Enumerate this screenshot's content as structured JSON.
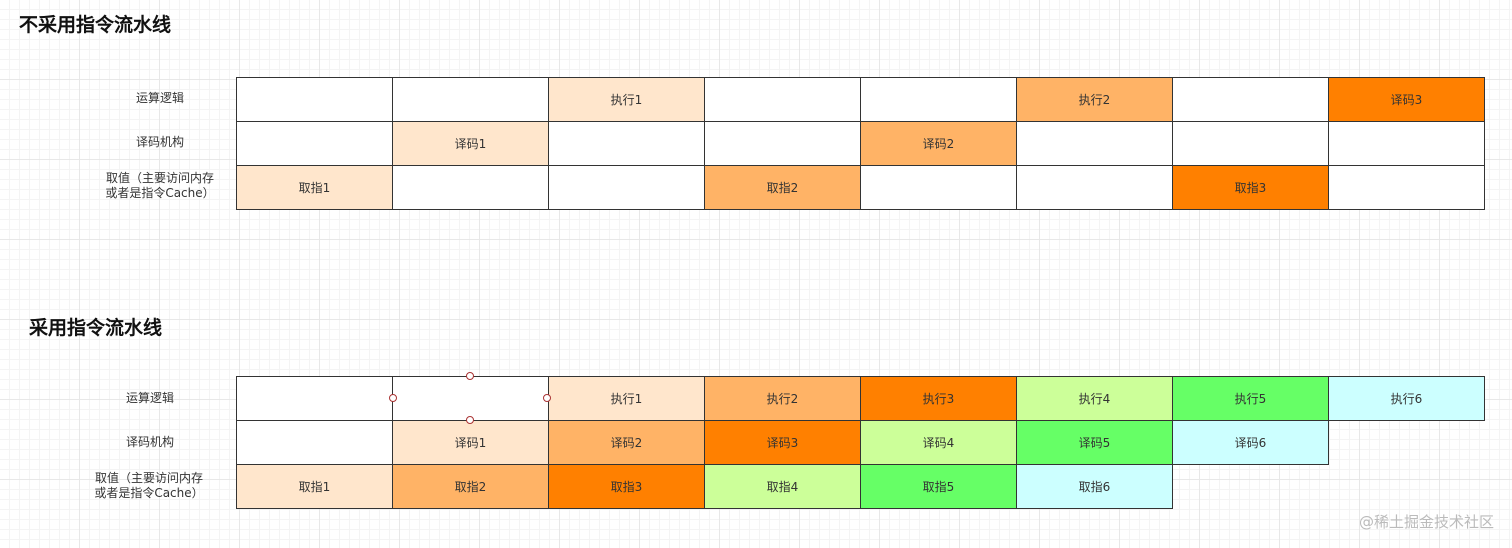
{
  "section1": {
    "title": "不采用指令流水线",
    "labels": {
      "exec": "运算逻辑",
      "decode": "译码机构",
      "fetch_line1": "取值（主要访问内存",
      "fetch_line2": "或者是指令Cache）"
    },
    "rows": [
      [
        {
          "text": "",
          "color": "#ffffff"
        },
        {
          "text": "",
          "color": "#ffffff"
        },
        {
          "text": "执行1",
          "color": "#ffe6cc"
        },
        {
          "text": "",
          "color": "#ffffff"
        },
        {
          "text": "",
          "color": "#ffffff"
        },
        {
          "text": "执行2",
          "color": "#ffb366"
        },
        {
          "text": "",
          "color": "#ffffff"
        },
        {
          "text": "译码3",
          "color": "#ff8000"
        }
      ],
      [
        {
          "text": "",
          "color": "#ffffff"
        },
        {
          "text": "译码1",
          "color": "#ffe6cc"
        },
        {
          "text": "",
          "color": "#ffffff"
        },
        {
          "text": "",
          "color": "#ffffff"
        },
        {
          "text": "译码2",
          "color": "#ffb366"
        },
        {
          "text": "",
          "color": "#ffffff"
        },
        {
          "text": "",
          "color": "#ffffff"
        },
        {
          "text": "",
          "color": "#ffffff"
        }
      ],
      [
        {
          "text": "取指1",
          "color": "#ffe6cc"
        },
        {
          "text": "",
          "color": "#ffffff"
        },
        {
          "text": "",
          "color": "#ffffff"
        },
        {
          "text": "取指2",
          "color": "#ffb366"
        },
        {
          "text": "",
          "color": "#ffffff"
        },
        {
          "text": "",
          "color": "#ffffff"
        },
        {
          "text": "取指3",
          "color": "#ff8000"
        },
        {
          "text": "",
          "color": "#ffffff"
        }
      ]
    ]
  },
  "section2": {
    "title": "采用指令流水线",
    "labels": {
      "exec": "运算逻辑",
      "decode": "译码机构",
      "fetch_line1": "取值（主要访问内存",
      "fetch_line2": "或者是指令Cache）"
    },
    "rows": [
      [
        {
          "text": "",
          "color": "#ffffff"
        },
        {
          "text": "",
          "color": "#ffffff"
        },
        {
          "text": "执行1",
          "color": "#ffe6cc"
        },
        {
          "text": "执行2",
          "color": "#ffb366"
        },
        {
          "text": "执行3",
          "color": "#ff8000"
        },
        {
          "text": "执行4",
          "color": "#ccff99"
        },
        {
          "text": "执行5",
          "color": "#66ff66"
        },
        {
          "text": "执行6",
          "color": "#ccffff"
        }
      ],
      [
        {
          "text": "",
          "color": "#ffffff"
        },
        {
          "text": "译码1",
          "color": "#ffe6cc"
        },
        {
          "text": "译码2",
          "color": "#ffb366"
        },
        {
          "text": "译码3",
          "color": "#ff8000"
        },
        {
          "text": "译码4",
          "color": "#ccff99"
        },
        {
          "text": "译码5",
          "color": "#66ff66"
        },
        {
          "text": "译码6",
          "color": "#ccffff"
        },
        null
      ],
      [
        {
          "text": "取指1",
          "color": "#ffe6cc"
        },
        {
          "text": "取指2",
          "color": "#ffb366"
        },
        {
          "text": "取指3",
          "color": "#ff8000"
        },
        {
          "text": "取指4",
          "color": "#ccff99"
        },
        {
          "text": "取指5",
          "color": "#66ff66"
        },
        {
          "text": "取指6",
          "color": "#ccffff"
        },
        null,
        null
      ]
    ]
  },
  "watermark": "@稀土掘金技术社区"
}
